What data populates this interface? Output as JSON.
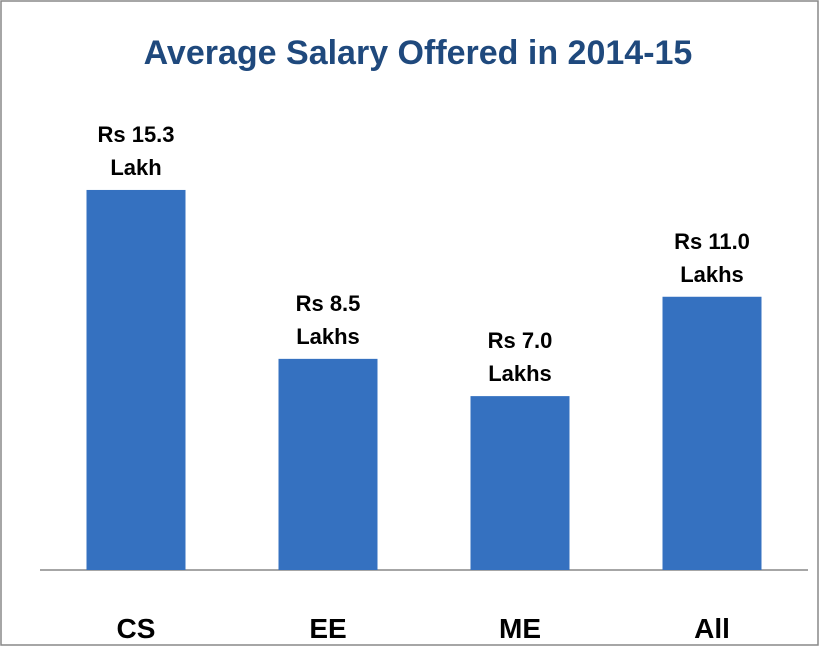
{
  "chart_data": {
    "type": "bar",
    "title": "Average Salary Offered in 2014-15",
    "categories": [
      "CS",
      "EE",
      "ME",
      "All"
    ],
    "values": [
      15.3,
      8.5,
      7.0,
      11.0
    ],
    "value_labels": [
      "Rs 15.3 Lakh",
      "Rs 8.5 Lakhs",
      "Rs 7.0 Lakhs",
      "Rs 11.0 Lakhs"
    ],
    "color": "#3571c0"
  }
}
